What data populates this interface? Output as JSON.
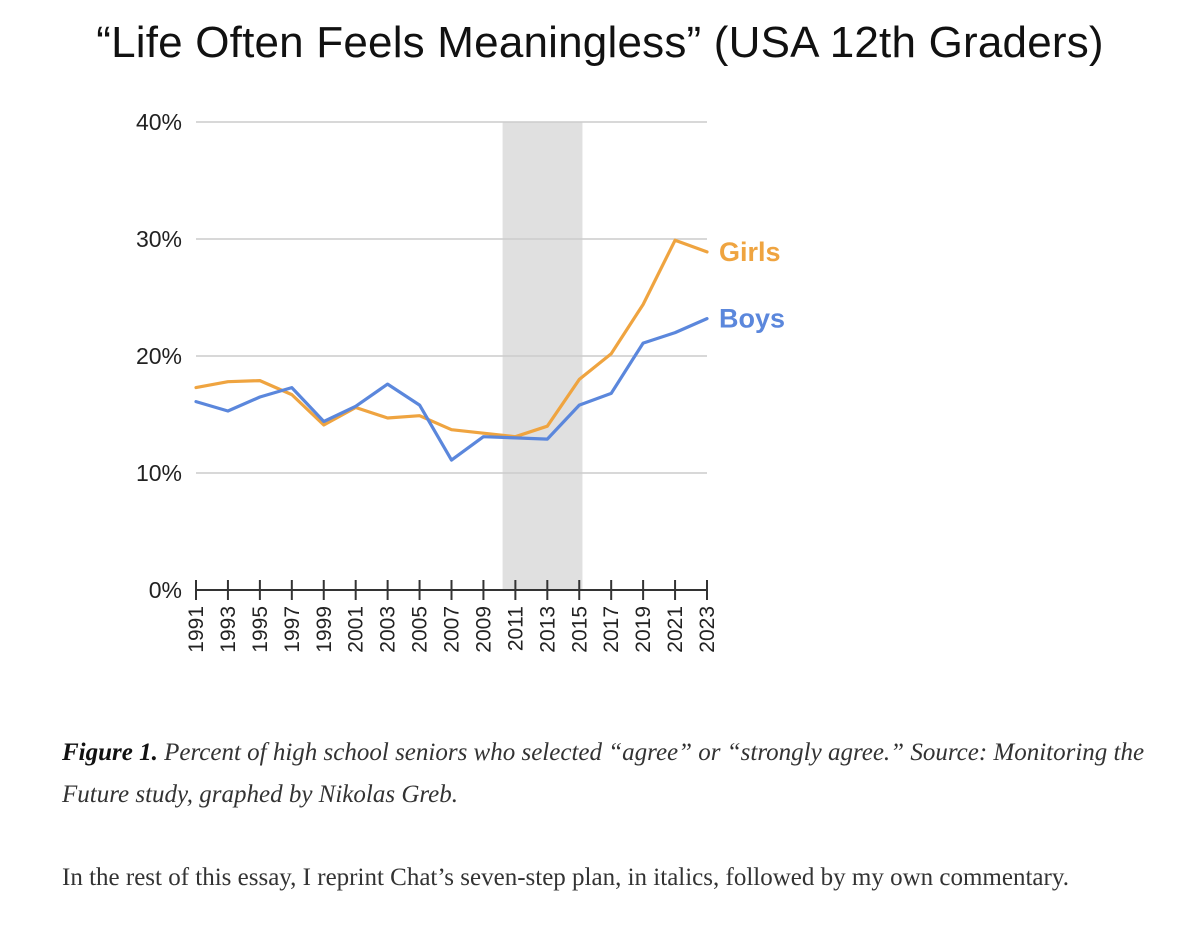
{
  "chart_data": {
    "type": "line",
    "title": "“Life Often Feels Meaningless” (USA 12th Graders)",
    "x": [
      1991,
      1993,
      1995,
      1997,
      1999,
      2001,
      2003,
      2005,
      2007,
      2009,
      2011,
      2013,
      2015,
      2017,
      2019,
      2021,
      2023
    ],
    "x_tick_labels": [
      "1991",
      "1993",
      "1995",
      "1997",
      "1999",
      "2001",
      "2003",
      "2005",
      "2007",
      "2009",
      "2011",
      "2013",
      "2015",
      "2017",
      "2019",
      "2021",
      "2023"
    ],
    "ylim": [
      0,
      40
    ],
    "y_ticks": [
      0,
      10,
      20,
      30,
      40
    ],
    "y_tick_labels": [
      "0%",
      "10%",
      "20%",
      "30%",
      "40%"
    ],
    "grid": true,
    "shaded_region": {
      "x_start": 2010.2,
      "x_end": 2015.2,
      "color": "#e0e0e0"
    },
    "series": [
      {
        "name": "Girls",
        "color": "#efa440",
        "values": [
          17.3,
          17.8,
          17.9,
          16.7,
          14.1,
          15.6,
          14.7,
          14.9,
          13.7,
          13.4,
          13.1,
          14.0,
          18.0,
          20.2,
          24.4,
          29.9,
          28.9
        ]
      },
      {
        "name": "Boys",
        "color": "#5b87dc",
        "values": [
          16.1,
          15.3,
          16.5,
          17.3,
          14.4,
          15.7,
          17.6,
          15.8,
          11.1,
          13.1,
          13.0,
          12.9,
          15.8,
          16.8,
          21.1,
          22.0,
          23.2
        ]
      }
    ]
  },
  "caption": {
    "label": "Figure 1.",
    "text": " Percent of high school seniors who selected “agree” or “strongly agree.” Source: Monitoring the Future study, graphed by Nikolas Greb."
  },
  "body_text": "In the rest of this essay, I reprint Chat’s seven-step plan, in italics, followed by my own commentary."
}
